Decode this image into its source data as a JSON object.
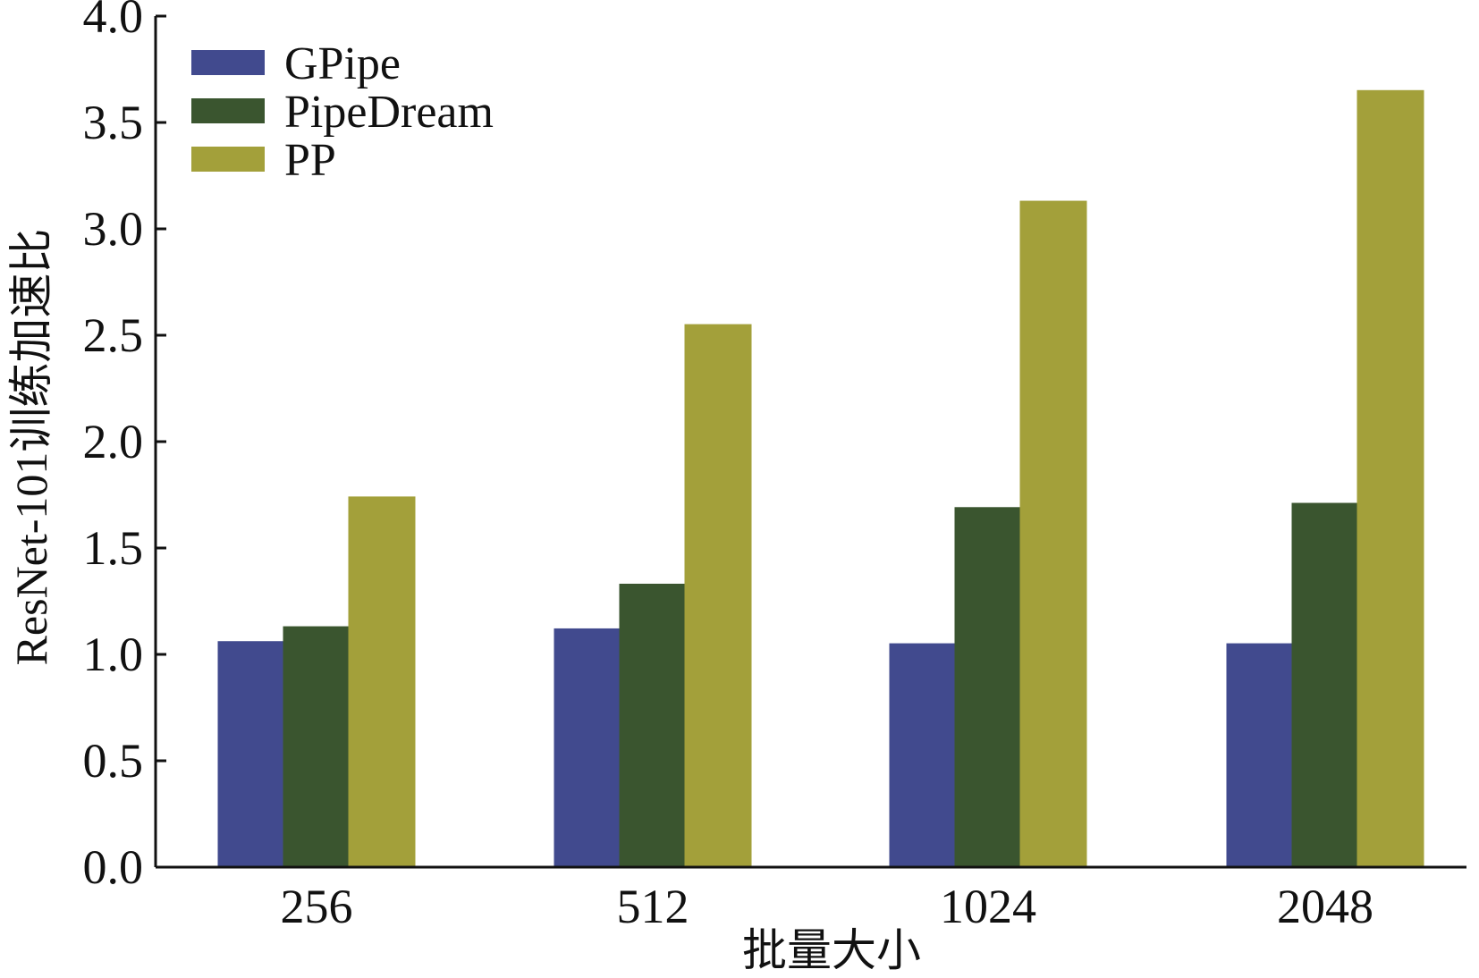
{
  "chart_data": {
    "type": "bar",
    "title": "",
    "xlabel": "批量大小",
    "ylabel": "ResNet-101训练加速比",
    "categories": [
      "256",
      "512",
      "1024",
      "2048"
    ],
    "series": [
      {
        "name": "GPipe",
        "color": "#414a8e",
        "values": [
          1.06,
          1.12,
          1.05,
          1.05
        ]
      },
      {
        "name": "PipeDream",
        "color": "#3a552f",
        "values": [
          1.13,
          1.33,
          1.69,
          1.71
        ]
      },
      {
        "name": "PP",
        "color": "#a3a03a",
        "values": [
          1.74,
          2.55,
          3.13,
          3.65
        ]
      }
    ],
    "ylim": [
      0,
      4.0
    ],
    "yticks": [
      "0.0",
      "0.5",
      "1.0",
      "1.5",
      "2.0",
      "2.5",
      "3.0",
      "3.5",
      "4.0"
    ],
    "grid": false,
    "legend": "top-left"
  }
}
